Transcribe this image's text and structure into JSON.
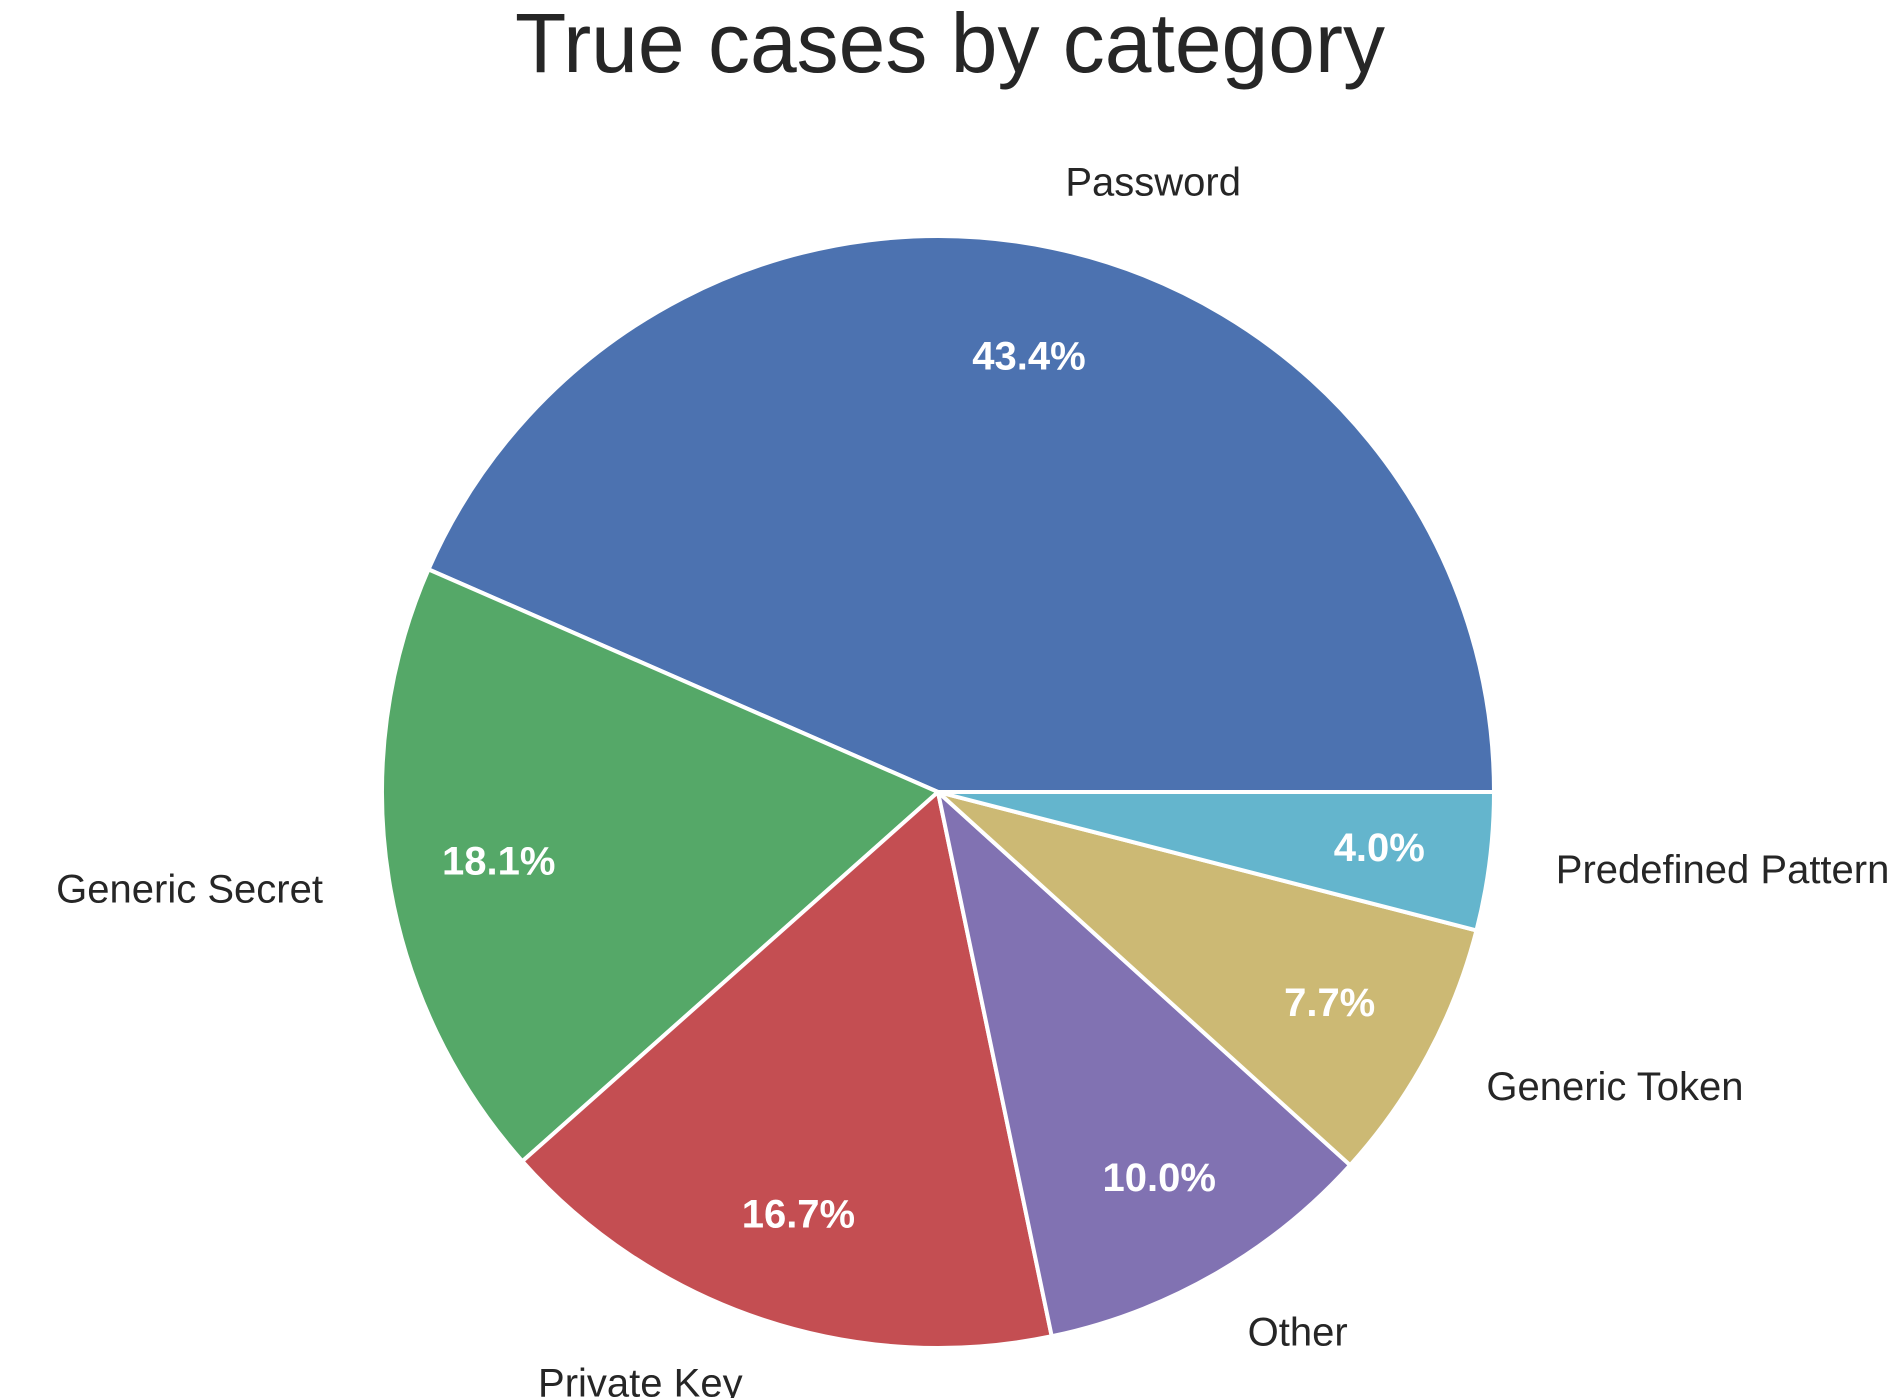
{
  "chart_data": {
    "type": "pie",
    "title": "True cases by category",
    "start_angle_deg": 0,
    "direction": "counterclockwise",
    "categories": [
      "Password",
      "Generic Secret",
      "Private Key",
      "Other",
      "Generic Token",
      "Predefined Pattern"
    ],
    "values": [
      43.4,
      18.1,
      16.7,
      10.0,
      7.7,
      4.0
    ],
    "value_labels": [
      "43.4%",
      "18.1%",
      "16.7%",
      "10.0%",
      "7.7%",
      "4.0%"
    ],
    "colors": [
      "#4C72B0",
      "#55A868",
      "#C44E52",
      "#8172B2",
      "#CCB974",
      "#64B5CD"
    ],
    "legend": "none"
  }
}
